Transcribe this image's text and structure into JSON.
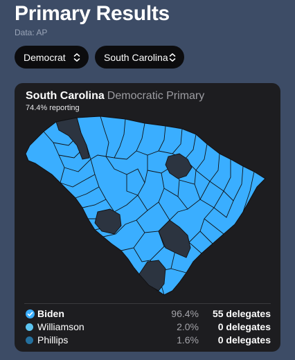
{
  "header": {
    "title": "Primary Results",
    "source": "Data: AP"
  },
  "filters": {
    "party": "Democrat",
    "state": "South Carolina"
  },
  "card": {
    "state_name": "South Carolina",
    "race_name": "Democratic Primary",
    "reporting": "74.4% reporting"
  },
  "colors": {
    "background": "#3d4c66",
    "card": "#1d1d20",
    "biden": "#3aaeff",
    "williamson": "#5cc4f0",
    "phillips": "#24709e",
    "no_results": "#2c3440"
  },
  "candidates": [
    {
      "name": "Biden",
      "percent": "96.4%",
      "delegates": "55 delegates",
      "winner": true
    },
    {
      "name": "Williamson",
      "percent": "2.0%",
      "delegates": "0 delegates",
      "winner": false
    },
    {
      "name": "Phillips",
      "percent": "1.6%",
      "delegates": "0 delegates",
      "winner": false
    }
  ]
}
